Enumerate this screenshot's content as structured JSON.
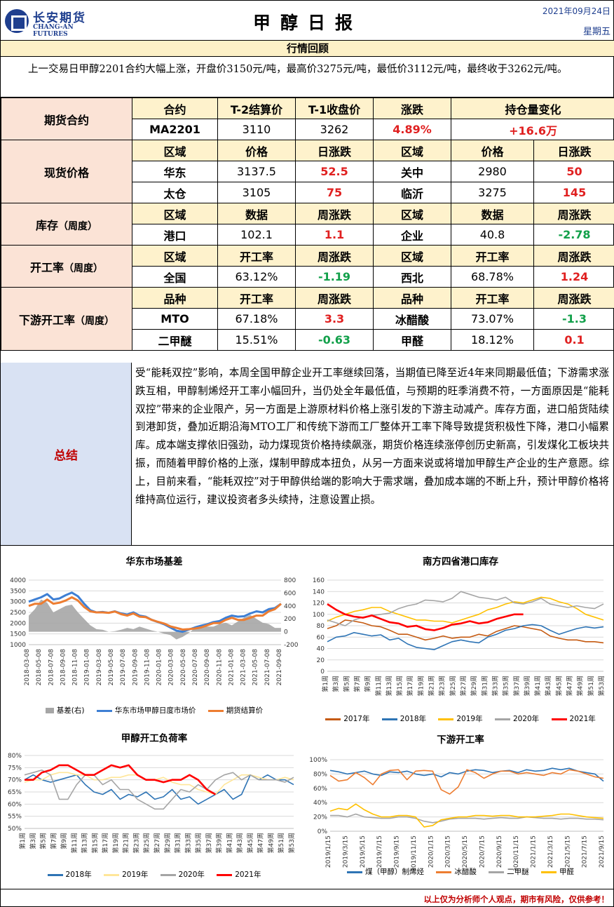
{
  "header": {
    "logo_cn": "长安期货",
    "logo_en": "CHANG-AN FUTURES",
    "title": "甲醇日报",
    "date": "2021年09月24日",
    "weekday": "星期五"
  },
  "review": {
    "bar_label": "行情回顾",
    "text": "上一交易日甲醇2201合约大幅上涨，开盘价3150元/吨，最高价3275元/吨，最低价3112元/吨，最终收于3262元/吨。"
  },
  "futures": {
    "section": "期货合约",
    "headers": [
      "合约",
      "T-2结算价",
      "T-1收盘价",
      "涨跌",
      "持仓量变化"
    ],
    "row": [
      "MA2201",
      "3110",
      "3262",
      "4.89%",
      "+16.6万"
    ]
  },
  "spot": {
    "section": "现货价格",
    "headers": [
      "区域",
      "价格",
      "日涨跌",
      "区域",
      "价格",
      "日涨跌"
    ],
    "rows": [
      [
        "华东",
        "3137.5",
        "52.5",
        "关中",
        "2980",
        "50"
      ],
      [
        "太仓",
        "3105",
        "75",
        "临沂",
        "3275",
        "145"
      ]
    ]
  },
  "inventory": {
    "section": "库存",
    "section_note": "（周度）",
    "headers": [
      "区域",
      "数据",
      "周涨跌",
      "区域",
      "数据",
      "周涨跌"
    ],
    "row": [
      "港口",
      "102.1",
      "1.1",
      "企业",
      "40.8",
      "-2.78"
    ]
  },
  "operating": {
    "section": "开工率",
    "section_note": "（周度）",
    "headers": [
      "区域",
      "开工率",
      "周涨跌",
      "区域",
      "开工率",
      "周涨跌"
    ],
    "row": [
      "全国",
      "63.12%",
      "-1.19",
      "西北",
      "68.78%",
      "1.24"
    ]
  },
  "downstream": {
    "section": "下游开工率",
    "section_note": "（周度）",
    "headers": [
      "品种",
      "开工率",
      "周涨跌",
      "品种",
      "开工率",
      "周涨跌"
    ],
    "rows": [
      [
        "MTO",
        "67.18%",
        "3.3",
        "冰醋酸",
        "73.07%",
        "-1.3"
      ],
      [
        "二甲醚",
        "15.51%",
        "-0.63",
        "甲醛",
        "18.12%",
        "0.1"
      ]
    ]
  },
  "summary": {
    "label": "总结",
    "text": "受“能耗双控”影响，本周全国甲醇企业开工率继续回落，当期值已降至近4年来同期最低值；下游需求涨跌互相，甲醇制烯烃开工率小幅回升，当仍处全年最低值，与预期的旺季消费不符，一方面原因是“能耗双控”带来的企业限产，另一方面是上游原材料价格上涨引发的下游主动减产。库存方面，进口船货陆续到港卸货，叠加近期沿海MTO工厂和传统下游而工厂整体开工率下降导致提货积极性下降，港口小幅累库。成本端支撑依旧强劲，动力煤现货价格持续飙涨，期货价格连续涨停创历史新高，引发煤化工板块共振，而随着甲醇价格的上涨，煤制甲醇成本扭负，从另一方面来说或将增加甲醇生产企业的生产意愿。综上，目前来看，“能耗双控”对于甲醇供给端的影响大于需求端，叠加成本端的不断上升，预计甲醇价格将维持高位运行，建议投资者多头续持，注意设置止损。"
  },
  "chart_data": [
    {
      "type": "line",
      "title": "华东市场基差",
      "x_ticks": [
        "2018-03-08",
        "2018-05-08",
        "2018-07-08",
        "2018-09-08",
        "2018-11-08",
        "2019-01-08",
        "2019-03-08",
        "2019-05-08",
        "2019-07-08",
        "2019-09-08",
        "2019-11-08",
        "2020-01-08",
        "2020-03-08",
        "2020-05-08",
        "2020-07-08",
        "2020-09-08",
        "2020-11-08",
        "2021-01-08",
        "2021-03-08",
        "2021-05-08",
        "2021-07-08",
        "2021-09-08"
      ],
      "ylim_left": [
        1000,
        4000
      ],
      "yticks_left": [
        "4000",
        "3500",
        "3000",
        "2500",
        "2000",
        "1500",
        "1000"
      ],
      "ylim_right": [
        -200,
        800
      ],
      "yticks_right": [
        "800",
        "600",
        "400",
        "200",
        "0",
        "-200"
      ],
      "series": [
        {
          "name": "基差(右)",
          "color": "#a6a6a6",
          "kind": "area",
          "axis": "right",
          "values": [
            250,
            350,
            500,
            450,
            300,
            350,
            400,
            420,
            300,
            200,
            100,
            40,
            30,
            0,
            10,
            30,
            60,
            40,
            80,
            50,
            20,
            0,
            -30,
            -50,
            -120,
            -80,
            -20,
            60,
            100,
            80,
            80,
            120,
            140,
            100,
            160,
            220,
            260,
            200,
            140,
            120,
            60,
            60
          ]
        },
        {
          "name": "华东市场甲醇日度市场价",
          "color": "#3e7fd4",
          "kind": "line",
          "axis": "left",
          "values": [
            3000,
            3100,
            3200,
            3350,
            3100,
            3150,
            3300,
            3420,
            3250,
            2900,
            2600,
            2500,
            2520,
            2480,
            2550,
            2450,
            2400,
            2500,
            2350,
            2300,
            2150,
            2050,
            1950,
            1800,
            1650,
            1600,
            1700,
            1800,
            1880,
            1950,
            2050,
            2100,
            2250,
            2350,
            2300,
            2320,
            2450,
            2550,
            2500,
            2650,
            2700,
            2900
          ]
        },
        {
          "name": "期货结算价",
          "color": "#ed7d31",
          "kind": "line",
          "axis": "left",
          "values": [
            2800,
            2900,
            2900,
            3100,
            2900,
            2950,
            3050,
            3200,
            3050,
            2750,
            2550,
            2500,
            2500,
            2480,
            2540,
            2420,
            2350,
            2450,
            2300,
            2280,
            2150,
            2060,
            1980,
            1850,
            1780,
            1700,
            1720,
            1750,
            1800,
            1900,
            2000,
            2000,
            2150,
            2250,
            2150,
            2150,
            2250,
            2350,
            2350,
            2550,
            2650,
            2900
          ]
        }
      ]
    },
    {
      "type": "line",
      "title": "南方四省港口库存",
      "x_ticks": [
        "第1周",
        "第3周",
        "第5周",
        "第7周",
        "第9周",
        "第11周",
        "第13周",
        "第15周",
        "第17周",
        "第19周",
        "第21周",
        "第23周",
        "第25周",
        "第27周",
        "第29周",
        "第31周",
        "第33周",
        "第35周",
        "第37周",
        "第39周",
        "第41周",
        "第43周",
        "第45周",
        "第47周",
        "第49周",
        "第51周",
        "第53周"
      ],
      "ylim": [
        0,
        160
      ],
      "yticks": [
        "160",
        "140",
        "120",
        "100",
        "80",
        "60",
        "40",
        "20",
        "0"
      ],
      "series": [
        {
          "name": "2017年",
          "color": "#c55a11",
          "values": [
            75,
            80,
            90,
            88,
            85,
            80,
            78,
            72,
            65,
            65,
            60,
            55,
            58,
            62,
            58,
            60,
            60,
            65,
            62,
            70,
            75,
            80,
            78,
            75,
            72,
            62,
            58,
            55,
            55,
            52,
            52,
            50
          ]
        },
        {
          "name": "2018年",
          "color": "#2e74b5",
          "values": [
            52,
            60,
            62,
            68,
            65,
            62,
            64,
            55,
            58,
            48,
            42,
            40,
            38,
            45,
            52,
            55,
            52,
            50,
            60,
            65,
            72,
            75,
            80,
            82,
            80,
            72,
            65,
            70,
            75,
            78,
            76,
            78
          ]
        },
        {
          "name": "2019年",
          "color": "#ffc000",
          "values": [
            88,
            95,
            100,
            105,
            108,
            112,
            112,
            105,
            100,
            95,
            90,
            90,
            88,
            88,
            85,
            90,
            95,
            100,
            108,
            112,
            118,
            122,
            120,
            125,
            130,
            128,
            122,
            118,
            110,
            100,
            95,
            90
          ]
        },
        {
          "name": "2020年",
          "color": "#a5a5a5",
          "values": [
            90,
            85,
            80,
            90,
            95,
            98,
            100,
            102,
            110,
            115,
            118,
            125,
            124,
            122,
            128,
            140,
            135,
            130,
            128,
            125,
            130,
            120,
            118,
            122,
            128,
            118,
            115,
            112,
            115,
            112,
            110,
            118
          ]
        },
        {
          "name": "2021年",
          "color": "#ff0000",
          "values": [
            118,
            108,
            100,
            96,
            94,
            98,
            92,
            86,
            84,
            78,
            80,
            74,
            72,
            76,
            82,
            84,
            88,
            84,
            86,
            92,
            96,
            100,
            100
          ]
        }
      ]
    },
    {
      "type": "line",
      "title": "甲醇开工负荷率",
      "x_ticks": [
        "第1周",
        "第3周",
        "第5周",
        "第7周",
        "第9周",
        "第11周",
        "第13周",
        "第15周",
        "第17周",
        "第19周",
        "第21周",
        "第23周",
        "第25周",
        "第27周",
        "第29周",
        "第31周",
        "第33周",
        "第35周",
        "第37周",
        "第39周",
        "第41周",
        "第43周",
        "第45周",
        "第47周",
        "第49周",
        "第51周",
        "第53周"
      ],
      "ylim": [
        50,
        80
      ],
      "yticks": [
        "80%",
        "75%",
        "70%",
        "65%",
        "60%",
        "55%",
        "50%"
      ],
      "series": [
        {
          "name": "2018年",
          "color": "#2e74b5",
          "values": [
            70,
            72,
            70,
            69,
            70,
            71,
            72,
            68,
            65,
            64,
            66,
            62,
            64,
            63,
            65,
            62,
            63,
            66,
            62,
            63,
            60,
            62,
            64,
            66,
            62,
            64,
            72,
            70,
            72,
            70,
            70,
            68
          ]
        },
        {
          "name": "2019年",
          "color": "#ffe699",
          "values": [
            69,
            70,
            70,
            72,
            73,
            73,
            72,
            72,
            70,
            70,
            71,
            71,
            72,
            72,
            70,
            70,
            71,
            69,
            68,
            68,
            66,
            65,
            64,
            68,
            70,
            72,
            72,
            71,
            70,
            70,
            71,
            70
          ]
        },
        {
          "name": "2020年",
          "color": "#a5a5a5",
          "values": [
            72,
            73,
            74,
            72,
            62,
            62,
            68,
            72,
            72,
            68,
            70,
            66,
            66,
            62,
            60,
            58,
            58,
            62,
            66,
            65,
            68,
            66,
            70,
            72,
            73,
            70,
            72,
            70,
            70,
            70,
            69,
            71
          ]
        },
        {
          "name": "2021年",
          "color": "#ff0000",
          "values": [
            70,
            70,
            73,
            74,
            76,
            76,
            74,
            72,
            72,
            74,
            76,
            75,
            76,
            72,
            70,
            70,
            69,
            70,
            70,
            72,
            70,
            66,
            64
          ]
        }
      ]
    },
    {
      "type": "line",
      "title": "下游开工率",
      "x_ticks": [
        "2019/1/15",
        "2019/3/15",
        "2019/5/15",
        "2019/7/15",
        "2019/9/15",
        "2019/11/15",
        "2020/1/15",
        "2020/3/15",
        "2020/5/15",
        "2020/7/15",
        "2020/9/15",
        "2020/11/15",
        "2021/1/15",
        "2021/3/15",
        "2021/5/15",
        "2021/7/15",
        "2021/9/15"
      ],
      "ylim": [
        0,
        100
      ],
      "yticks": [
        "100%",
        "80%",
        "60%",
        "40%",
        "20%",
        "0%"
      ],
      "series": [
        {
          "name": "煤（甲醇）制烯烃",
          "color": "#2e74b5",
          "values": [
            85,
            83,
            80,
            82,
            84,
            80,
            78,
            83,
            82,
            84,
            80,
            78,
            80,
            76,
            82,
            80,
            84,
            86,
            85,
            82,
            84,
            85,
            82,
            86,
            84,
            85,
            88,
            86,
            88,
            84,
            82,
            80,
            70
          ]
        },
        {
          "name": "冰醋酸",
          "color": "#ed7d31",
          "values": [
            78,
            70,
            72,
            82,
            75,
            65,
            80,
            85,
            86,
            72,
            84,
            85,
            84,
            58,
            52,
            62,
            86,
            82,
            74,
            80,
            84,
            84,
            80,
            82,
            80,
            78,
            82,
            80,
            86,
            84,
            80,
            76,
            74
          ]
        },
        {
          "name": "二甲醚",
          "color": "#a5a5a5",
          "values": [
            22,
            22,
            20,
            24,
            20,
            19,
            18,
            18,
            20,
            20,
            18,
            14,
            12,
            14,
            17,
            18,
            18,
            18,
            17,
            18,
            19,
            18,
            18,
            20,
            19,
            18,
            18,
            17,
            18,
            18,
            17,
            17,
            16
          ]
        },
        {
          "name": "甲醛",
          "color": "#ffc000",
          "values": [
            28,
            32,
            30,
            38,
            30,
            24,
            20,
            20,
            22,
            22,
            20,
            6,
            8,
            16,
            18,
            20,
            20,
            22,
            22,
            21,
            22,
            22,
            20,
            20,
            20,
            21,
            22,
            24,
            24,
            22,
            20,
            19,
            18
          ]
        }
      ]
    }
  ],
  "footer": {
    "disclaimer": "以上仅为分析师个人观点，期市有风险，仅供参考！"
  }
}
